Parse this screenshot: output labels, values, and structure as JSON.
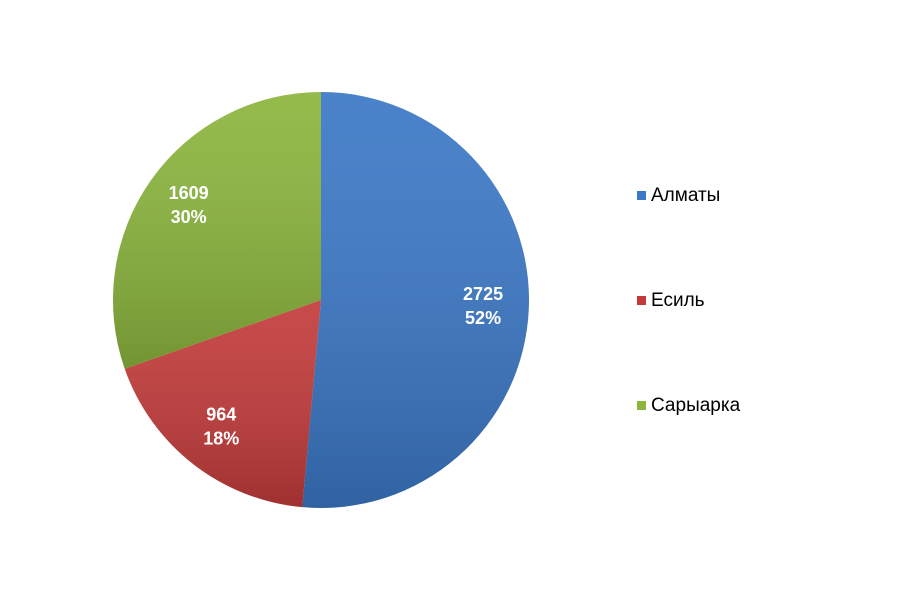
{
  "chart_data": {
    "type": "pie",
    "categories": [
      "Алматы",
      "Есиль",
      "Сарыарка"
    ],
    "values": [
      2725,
      964,
      1609
    ],
    "percent_labels": [
      "52%",
      "18%",
      "30%"
    ],
    "colors": [
      "#3b78c6",
      "#c23b3a",
      "#8bb53d"
    ],
    "legend": "right"
  }
}
